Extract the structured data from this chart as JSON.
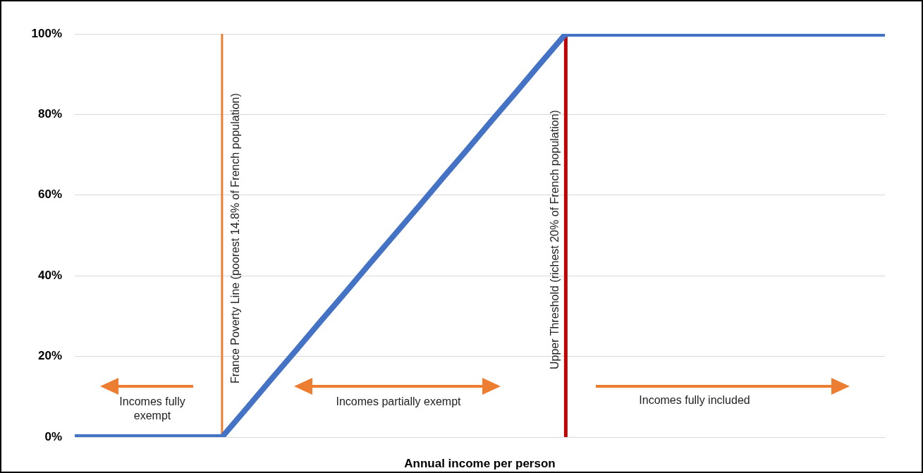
{
  "chart_data": {
    "type": "line",
    "xlabel": "Annual income per person",
    "categories": [
      null,
      null,
      null,
      null,
      null,
      null,
      null,
      null,
      null,
      null,
      null,
      null,
      null,
      null,
      null,
      null,
      null,
      null,
      null,
      null,
      null,
      null,
      null,
      null,
      null,
      null,
      null,
      null,
      null,
      null,
      null,
      null,
      null,
      null
    ],
    "series": [
      {
        "color": "#4472c4",
        "values": [
          0,
          0,
          0,
          0,
          0,
          0,
          0,
          7.1,
          14.3,
          21.4,
          28.6,
          35.7,
          42.9,
          50,
          57.1,
          64.3,
          71.4,
          78.6,
          85.7,
          92.9,
          100,
          100,
          100,
          100,
          100,
          100,
          100,
          100,
          100,
          100,
          100,
          100,
          100,
          100
        ]
      }
    ],
    "ylim": [
      0,
      100
    ],
    "yticks": [
      {
        "value": 0,
        "label": "0%"
      },
      {
        "value": 20,
        "label": "20%"
      },
      {
        "value": 40,
        "label": "40%"
      },
      {
        "value": 60,
        "label": "60%"
      },
      {
        "value": 80,
        "label": "80%"
      },
      {
        "value": 100,
        "label": "100%"
      }
    ],
    "grid": "y",
    "legend": false,
    "marker": "none",
    "tick_labels": "y",
    "annotations": [
      "France Poverty Line (poorest 14.8% of French population)",
      "Upper Threshold (richest 20% of French population)",
      "Incomes fully exempt",
      "Incomes partially exempt",
      "Incomes fully included"
    ]
  }
}
